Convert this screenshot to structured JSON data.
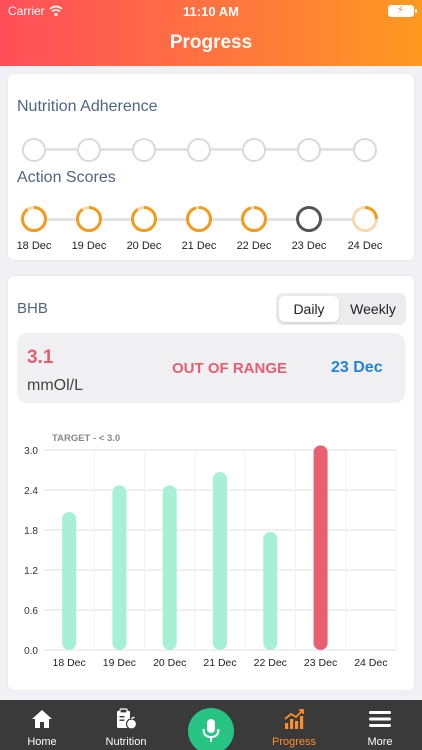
{
  "status_bar": {
    "carrier": "Carrier",
    "time": "11:10 AM"
  },
  "header": {
    "title": "Progress"
  },
  "nutrition": {
    "title": "Nutrition Adherence",
    "dot_count": 7
  },
  "action": {
    "title": "Action Scores",
    "days": [
      {
        "label": "18 Dec",
        "progress": 0.9
      },
      {
        "label": "19 Dec",
        "progress": 0.9
      },
      {
        "label": "20 Dec",
        "progress": 0.9
      },
      {
        "label": "21 Dec",
        "progress": 0.95
      },
      {
        "label": "22 Dec",
        "progress": 0.95
      },
      {
        "label": "23 Dec",
        "progress": 0
      },
      {
        "label": "24 Dec",
        "progress": 0.25
      }
    ]
  },
  "bhb": {
    "title": "BHB",
    "toggle": {
      "daily": "Daily",
      "weekly": "Weekly",
      "selected": "Daily"
    },
    "summary": {
      "value": "3.1",
      "unit": "mmOl/L",
      "status": "OUT OF RANGE",
      "date": "23 Dec"
    }
  },
  "chart_data": {
    "type": "bar",
    "target_label": "TARGET - < 3.0",
    "target": 3.0,
    "categories": [
      "18 Dec",
      "19 Dec",
      "20 Dec",
      "21 Dec",
      "22 Dec",
      "23 Dec",
      "24 Dec"
    ],
    "values": [
      2.07,
      2.47,
      2.47,
      2.67,
      1.77,
      3.07,
      null
    ],
    "y_ticks": [
      "0.0",
      "0.6",
      "1.2",
      "1.8",
      "2.4",
      "3.0"
    ],
    "ylim": [
      0,
      3.0
    ],
    "grid": true,
    "colors": {
      "in_range": "#a6f0d6",
      "out_of_range": "#e8606f"
    }
  },
  "tabs": [
    {
      "label": "Home",
      "icon": "home-icon",
      "active": false
    },
    {
      "label": "Nutrition",
      "icon": "nutrition-icon",
      "active": false
    },
    {
      "label": "Progress",
      "icon": "progress-chart-icon",
      "active": true
    },
    {
      "label": "More",
      "icon": "menu-icon",
      "active": false
    }
  ],
  "colors": {
    "accent": "#ff8f2a",
    "ring": "#f29b1d",
    "ring_empty": "#555555",
    "mic": "#27c483"
  }
}
